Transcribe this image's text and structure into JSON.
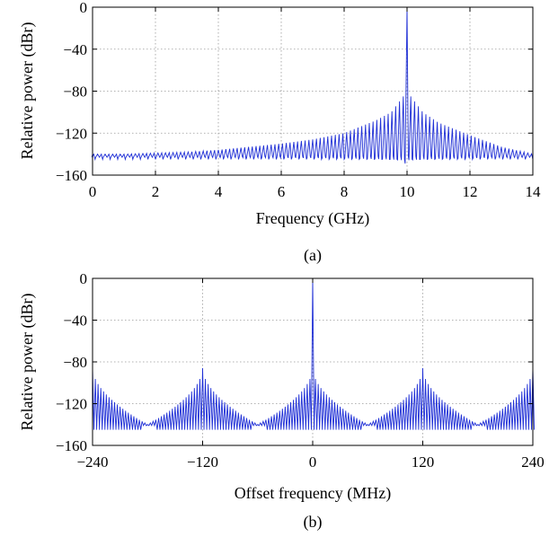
{
  "chart_data": [
    {
      "type": "line",
      "panel": "(a)",
      "xlabel": "Frequency (GHz)",
      "ylabel": "Relative power (dBr)",
      "xlim": [
        0,
        14
      ],
      "ylim": [
        -160,
        0
      ],
      "xticks": [
        0,
        2,
        4,
        6,
        8,
        10,
        12,
        14
      ],
      "yticks": [
        0,
        -40,
        -80,
        -120,
        -160
      ],
      "xtick_labels": [
        "0",
        "2",
        "4",
        "6",
        "8",
        "10",
        "12",
        "14"
      ],
      "ytick_labels": [
        "0",
        "−40",
        "−80",
        "−120",
        "−160"
      ],
      "grid": true,
      "series": [
        {
          "comb_center": 10,
          "comb_spacing": 0.12,
          "peak_value": 0,
          "floor_value": -140,
          "envelope_x": [
            0,
            1,
            2,
            3,
            4,
            5,
            6,
            7,
            8,
            9,
            9.5,
            9.88,
            10,
            10.12,
            10.5,
            11,
            12,
            13,
            14
          ],
          "envelope_y": [
            -140,
            -140,
            -139,
            -138,
            -136,
            -133,
            -130,
            -126,
            -120,
            -108,
            -100,
            -85,
            0,
            -85,
            -100,
            -110,
            -122,
            -133,
            -140
          ]
        }
      ]
    },
    {
      "type": "line",
      "panel": "(b)",
      "xlabel": "Offset frequency (MHz)",
      "ylabel": "Relative power (dBr)",
      "xlim": [
        -240,
        240
      ],
      "ylim": [
        -160,
        0
      ],
      "xticks": [
        -240,
        -120,
        0,
        120,
        240
      ],
      "yticks": [
        0,
        -40,
        -80,
        -120,
        -160
      ],
      "xtick_labels": [
        "−240",
        "−120",
        "0",
        "120",
        "240"
      ],
      "ytick_labels": [
        "0",
        "−40",
        "−80",
        "−120",
        "−160"
      ],
      "grid": true,
      "series": [
        {
          "cluster_centers": [
            -240,
            -120,
            0,
            120,
            240
          ],
          "cluster_half_width": 60,
          "tooth_spacing": 3,
          "center_peak_value": 0,
          "cluster_peak_value": -86,
          "cluster_edge_value": -140,
          "trough_value": -145
        }
      ]
    }
  ]
}
